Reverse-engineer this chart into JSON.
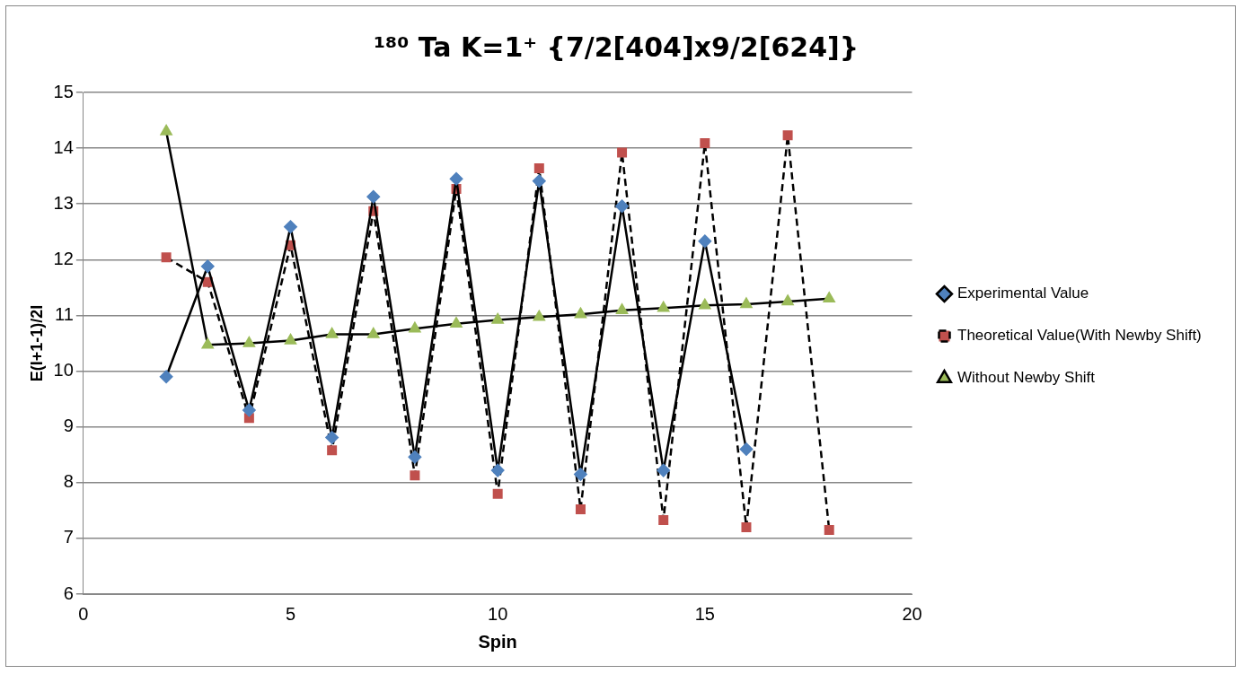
{
  "chart_data": {
    "type": "line",
    "title": "¹⁸⁰ Ta K=1⁺ {7/2[404]x9/2[624]}",
    "xlabel": "Spin",
    "ylabel": "E(I+1-1)/2I",
    "xlim": [
      0,
      20
    ],
    "xticks": [
      0,
      5,
      10,
      15,
      20
    ],
    "ylim": [
      6,
      15
    ],
    "yticks": [
      6,
      7,
      8,
      9,
      10,
      11,
      12,
      13,
      14,
      15
    ],
    "grid": "y",
    "legend": "right",
    "series": [
      {
        "name": "Experimental Value",
        "color": "#4f81bd",
        "marker": "diamond",
        "line_style": "solid",
        "x": [
          2,
          3,
          4,
          5,
          6,
          7,
          8,
          9,
          10,
          11,
          12,
          13,
          14,
          15,
          16
        ],
        "values": [
          9.9,
          11.88,
          9.3,
          12.59,
          8.81,
          13.13,
          8.46,
          13.45,
          8.22,
          13.41,
          8.15,
          12.96,
          8.22,
          12.33,
          8.6
        ]
      },
      {
        "name": "Theoretical Value(With Newby Shift)",
        "color": "#c0504d",
        "marker": "square",
        "line_style": "dashed",
        "x": [
          2,
          3,
          4,
          5,
          6,
          7,
          8,
          9,
          10,
          11,
          12,
          13,
          14,
          15,
          16,
          17,
          18
        ],
        "values": [
          12.04,
          11.6,
          9.16,
          12.26,
          8.58,
          12.87,
          8.13,
          13.27,
          7.8,
          13.64,
          7.52,
          13.92,
          7.33,
          14.09,
          7.2,
          14.23,
          7.15
        ]
      },
      {
        "name": "Without Newby Shift",
        "color": "#9bbb59",
        "marker": "triangle",
        "line_style": "solid",
        "x": [
          2,
          3,
          4,
          5,
          6,
          7,
          8,
          9,
          10,
          11,
          12,
          13,
          14,
          15,
          16,
          17,
          18
        ],
        "values": [
          14.3,
          10.47,
          10.5,
          10.55,
          10.66,
          10.66,
          10.76,
          10.85,
          10.92,
          10.97,
          11.02,
          11.09,
          11.13,
          11.18,
          11.2,
          11.25,
          11.3
        ]
      }
    ]
  }
}
